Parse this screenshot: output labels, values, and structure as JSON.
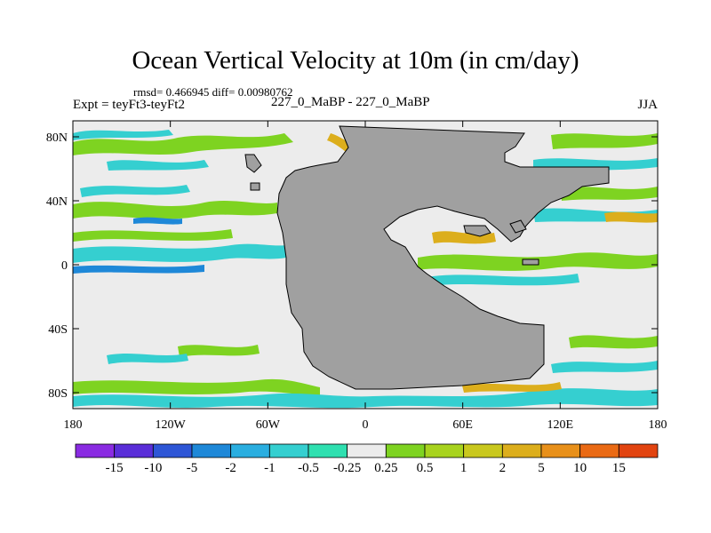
{
  "title": "Ocean Vertical Velocity at 10m (in cm/day)",
  "stats": "rmsd= 0.466945  diff= 0.00980762",
  "left_label": "Expt = teyFt3-teyFt2",
  "center_label": "227_0_MaBP - 227_0_MaBP",
  "right_label": "JJA",
  "lat_ticks": [
    {
      "label": "80N",
      "lat": 80
    },
    {
      "label": "40N",
      "lat": 40
    },
    {
      "label": "0",
      "lat": 0
    },
    {
      "label": "40S",
      "lat": -40
    },
    {
      "label": "80S",
      "lat": -80
    }
  ],
  "lon_ticks": [
    {
      "label": "180",
      "lon": -180
    },
    {
      "label": "120W",
      "lon": -120
    },
    {
      "label": "60W",
      "lon": -60
    },
    {
      "label": "0",
      "lon": 0
    },
    {
      "label": "60E",
      "lon": 60
    },
    {
      "label": "120E",
      "lon": 120
    },
    {
      "label": "180",
      "lon": 180
    }
  ],
  "colorbar": {
    "colors": [
      "#8a2be2",
      "#5a2ed8",
      "#2e56d6",
      "#1e88d8",
      "#2aaee0",
      "#35cfd0",
      "#2fe0b0",
      "#ececec",
      "#7ed321",
      "#a8d31e",
      "#c9c81e",
      "#dcae1c",
      "#e8901a",
      "#ea6a14",
      "#e24410"
    ],
    "labels": [
      "-15",
      "-10",
      "-5",
      "-2",
      "-1",
      "-0.5",
      "-0.25",
      "0.25",
      "0.5",
      "1",
      "2",
      "5",
      "10",
      "15"
    ]
  },
  "colors": {
    "land": "#a0a0a0",
    "ocean_neutral": "#ececec",
    "positive_green": "#7ed321",
    "negative_cyan": "#35cfd0",
    "positive_orange": "#dcae1c",
    "negative_blue": "#1e88d8"
  }
}
